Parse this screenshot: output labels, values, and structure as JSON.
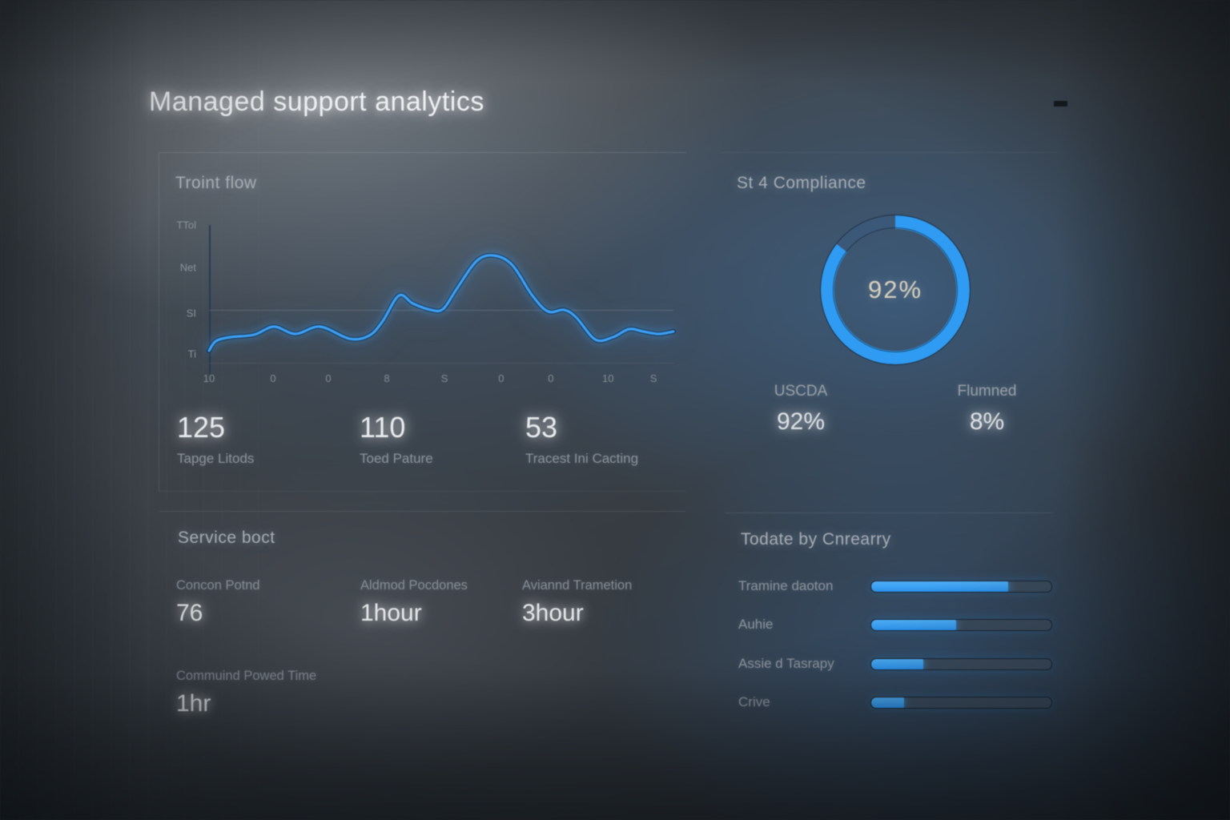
{
  "app": {
    "title": "Managed support analytics"
  },
  "colors": {
    "accent_blue": "#2f9bf2",
    "donut_remainder": "#3c5878",
    "bar_track": "#3c4c5e",
    "text_bright": "#e9ecef",
    "text_muted": "#8b939b"
  },
  "panels": {
    "traffic": {
      "title": "Troint flow",
      "stats": [
        {
          "value": "125",
          "label": "Tapge Litods"
        },
        {
          "value": "110",
          "label": "Toed Pature"
        },
        {
          "value": "53",
          "label": "Tracest Ini Cacting"
        }
      ]
    },
    "compliance": {
      "title": "St 4 Compliance",
      "center_value": "92%",
      "legend": [
        {
          "label": "USCDA",
          "value": "92%"
        },
        {
          "label": "Flumned",
          "value": "8%"
        }
      ]
    },
    "service": {
      "title": "Service boct",
      "metrics": [
        {
          "label": "Concon Potnd",
          "value": "76"
        },
        {
          "label": "Aldmod Pocdones",
          "value": "1hour"
        },
        {
          "label": "Aviannd Trametion",
          "value": "3hour"
        },
        {
          "label": "Commuind Powed Time",
          "value": "1hr"
        }
      ]
    },
    "categories": {
      "title": "Todate by Cnrearry",
      "bars": [
        {
          "label": "Tramine daoton",
          "percent": 76
        },
        {
          "label": "Auhie",
          "percent": 47
        },
        {
          "label": "Assie d Tasrapy",
          "percent": 29
        },
        {
          "label": "Crive",
          "percent": 18
        }
      ]
    }
  },
  "chart_data": [
    {
      "type": "line",
      "title": "Troint flow",
      "line_color": "#3da0f5",
      "ylim": [
        0,
        100
      ],
      "y_ticks": [
        "TTol",
        "Net",
        "SI",
        "Ti"
      ],
      "y_tick_pos": [
        -5,
        27,
        61,
        91
      ],
      "x_ticks": [
        "10",
        "0",
        "0",
        "8",
        "S",
        "0",
        "0",
        "10",
        "S"
      ],
      "x_tick_pos": [
        0,
        13.8,
        25.7,
        38.3,
        50.7,
        62.9,
        73.6,
        85.9,
        95.7
      ],
      "gridlines": [
        {
          "pos": 58.3,
          "opacity": 0.32
        },
        {
          "pos": 97.6,
          "opacity": 0.14
        }
      ],
      "points": [
        [
          0,
          11.3
        ],
        [
          1.5,
          18.5
        ],
        [
          4.6,
          21.4
        ],
        [
          9.7,
          23.2
        ],
        [
          14,
          29.2
        ],
        [
          18.6,
          23.8
        ],
        [
          23.9,
          29.2
        ],
        [
          30.3,
          20.2
        ],
        [
          34.5,
          22.6
        ],
        [
          37.4,
          33.3
        ],
        [
          40.9,
          52.4
        ],
        [
          43.9,
          46.4
        ],
        [
          47.7,
          41.7
        ],
        [
          50.4,
          42.3
        ],
        [
          53.3,
          57.1
        ],
        [
          57.6,
          78
        ],
        [
          61.4,
          82.1
        ],
        [
          65.3,
          75
        ],
        [
          69.6,
          52.4
        ],
        [
          73,
          40.5
        ],
        [
          76.4,
          41.7
        ],
        [
          79,
          36.3
        ],
        [
          83.2,
          19.6
        ],
        [
          87,
          21.4
        ],
        [
          90.4,
          27.4
        ],
        [
          93.5,
          25.6
        ],
        [
          96.9,
          23.8
        ],
        [
          100,
          25.6
        ]
      ]
    },
    {
      "type": "donut",
      "title": "St 4 Compliance",
      "center_label": "92%",
      "segment_sweep_deg": 52,
      "slices": [
        {
          "label": "USCDA",
          "value": 92,
          "color": "#2f9bf2"
        },
        {
          "label": "Flumned",
          "value": 8,
          "color": "#3c5878"
        }
      ]
    },
    {
      "type": "bar",
      "orientation": "horizontal",
      "title": "Todate by Cnrearry",
      "categories": [
        "Tramine daoton",
        "Auhie",
        "Assie d Tasrapy",
        "Crive"
      ],
      "values": [
        76,
        47,
        29,
        18
      ],
      "xlim": [
        0,
        100
      ]
    }
  ]
}
